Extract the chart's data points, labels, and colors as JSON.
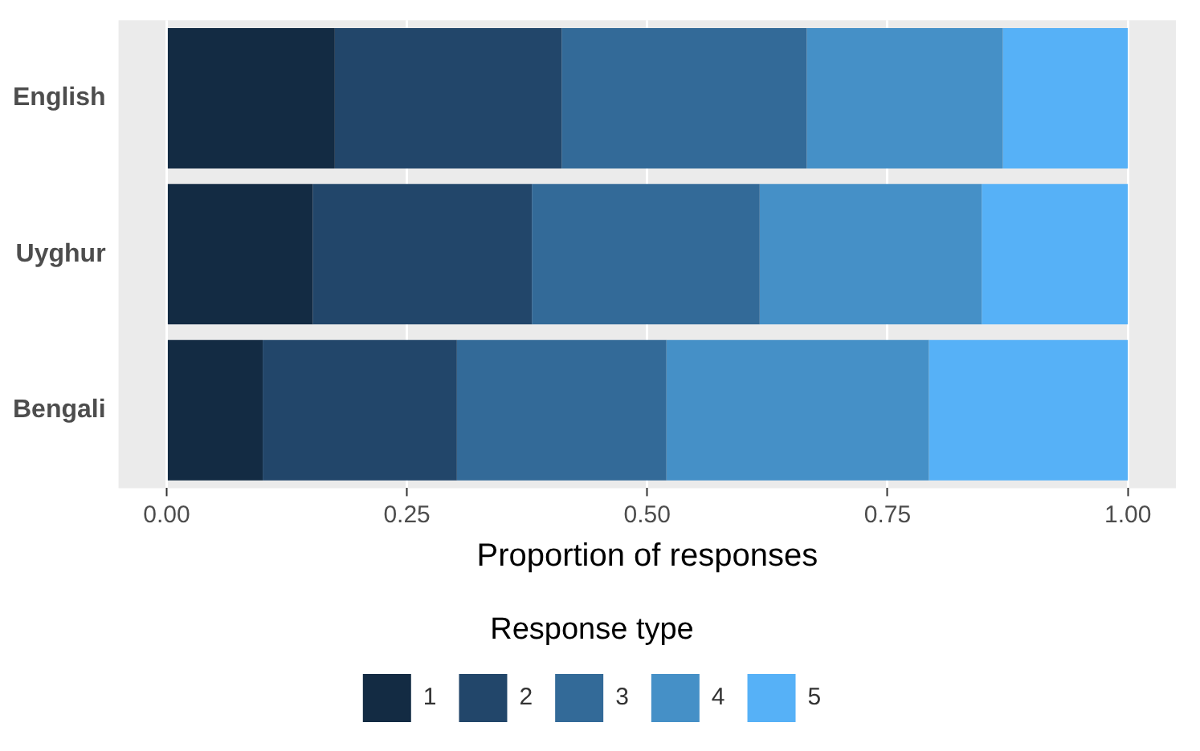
{
  "chart_data": {
    "type": "bar",
    "orientation": "horizontal",
    "stacked": true,
    "xlabel": "Proportion of responses",
    "legend_title": "Response type",
    "legend": "bottom",
    "grid": "x",
    "categories": [
      "English",
      "Uyghur",
      "Bengali"
    ],
    "series": [
      {
        "name": "1",
        "color": "#132b43",
        "values": [
          0.175,
          0.152,
          0.1
        ]
      },
      {
        "name": "2",
        "color": "#22466a",
        "values": [
          0.236,
          0.228,
          0.202
        ]
      },
      {
        "name": "3",
        "color": "#336a98",
        "values": [
          0.255,
          0.237,
          0.218
        ]
      },
      {
        "name": "4",
        "color": "#4590c7",
        "values": [
          0.204,
          0.231,
          0.273
        ]
      },
      {
        "name": "5",
        "color": "#56b1f7",
        "values": [
          0.13,
          0.152,
          0.207
        ]
      }
    ],
    "xlim": [
      -0.05,
      1.05
    ],
    "xticks": [
      {
        "value": 0,
        "label": "0.00"
      },
      {
        "value": 0.25,
        "label": "0.25"
      },
      {
        "value": 0.5,
        "label": "0.50"
      },
      {
        "value": 0.75,
        "label": "0.75"
      },
      {
        "value": 1,
        "label": "1.00"
      }
    ]
  }
}
